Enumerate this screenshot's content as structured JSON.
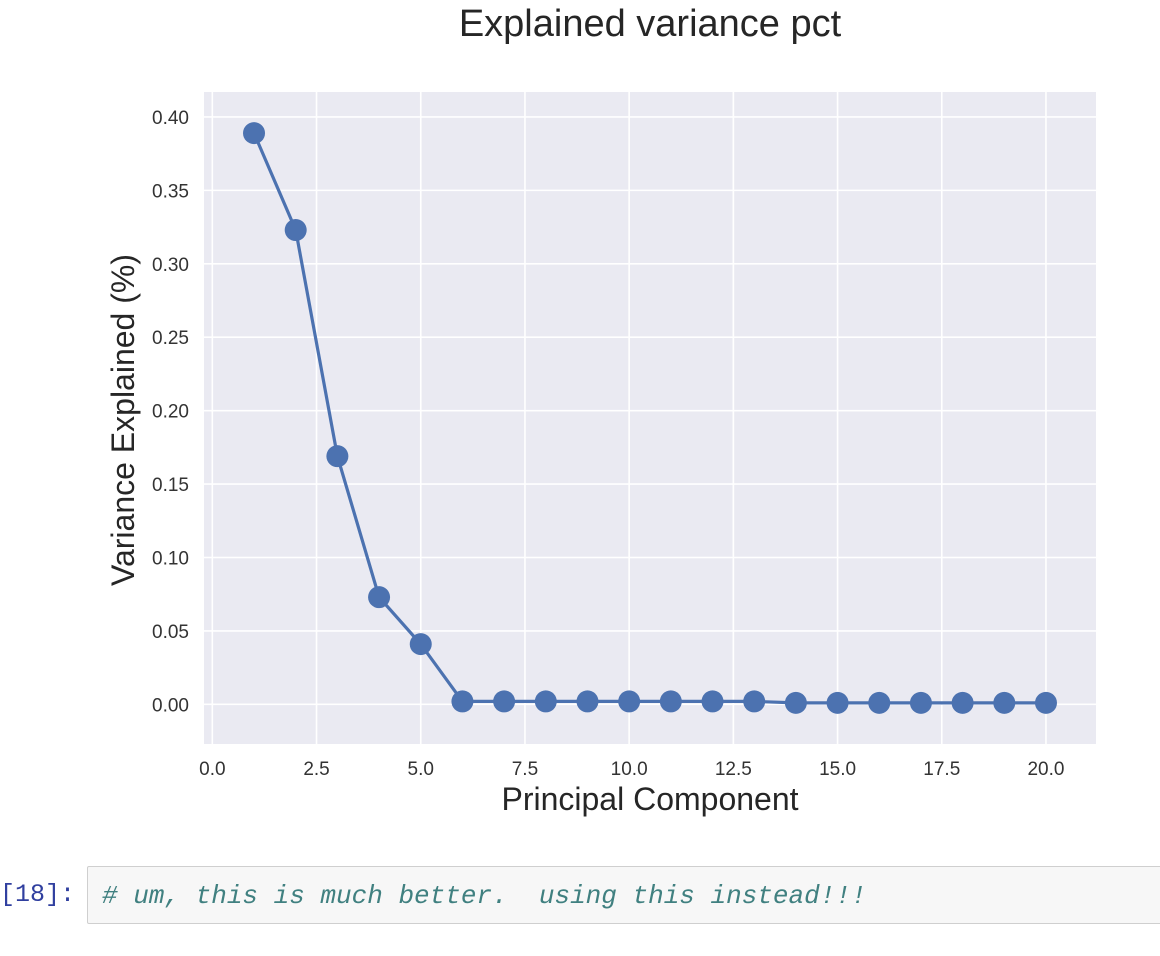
{
  "chart_data": {
    "type": "line",
    "title": "Explained variance pct",
    "xlabel": "Principal Component",
    "ylabel": "Variance Explained (%)",
    "xlim": [
      -0.2,
      21.2
    ],
    "ylim": [
      -0.027,
      0.417
    ],
    "xticks": [
      0.0,
      2.5,
      5.0,
      7.5,
      10.0,
      12.5,
      15.0,
      17.5,
      20.0
    ],
    "xtick_labels": [
      "0.0",
      "2.5",
      "5.0",
      "7.5",
      "10.0",
      "12.5",
      "15.0",
      "17.5",
      "20.0"
    ],
    "yticks": [
      0.0,
      0.05,
      0.1,
      0.15,
      0.2,
      0.25,
      0.3,
      0.35,
      0.4
    ],
    "ytick_labels": [
      "0.00",
      "0.05",
      "0.10",
      "0.15",
      "0.20",
      "0.25",
      "0.30",
      "0.35",
      "0.40"
    ],
    "grid": true,
    "series": [
      {
        "x": [
          1,
          2,
          3,
          4,
          5,
          6,
          7,
          8,
          9,
          10,
          11,
          12,
          13,
          14,
          15,
          16,
          17,
          18,
          19,
          20
        ],
        "y": [
          0.389,
          0.323,
          0.169,
          0.073,
          0.041,
          0.002,
          0.002,
          0.002,
          0.002,
          0.002,
          0.002,
          0.002,
          0.002,
          0.001,
          0.001,
          0.001,
          0.001,
          0.001,
          0.001,
          0.001
        ],
        "color": "#4c72b0"
      }
    ],
    "colors": {
      "plot_bg": "#eaeaf2",
      "grid": "#ffffff",
      "text": "#333333"
    }
  },
  "cell": {
    "prompt": "[18]:",
    "code": "# um, this is much better.  using this instead!!!"
  }
}
